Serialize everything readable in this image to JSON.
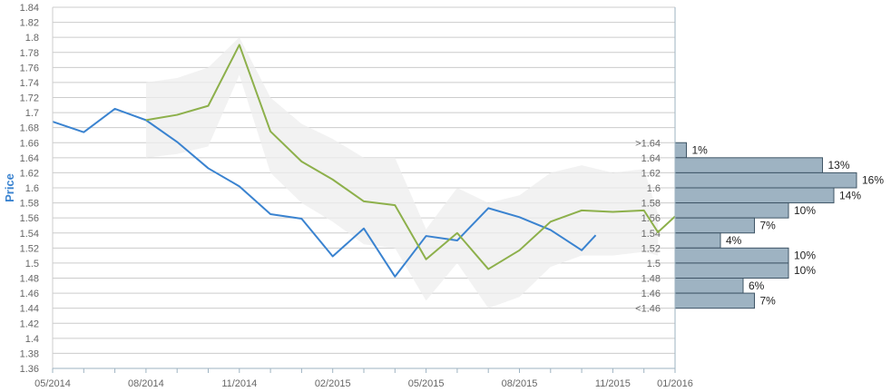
{
  "chart_data": {
    "type": "line",
    "ylabel": "Price",
    "xlabel": "",
    "ylim": [
      1.36,
      1.84
    ],
    "y_ticks": [
      "1.36",
      "1.38",
      "1.4",
      "1.42",
      "1.44",
      "1.46",
      "1.48",
      "1.5",
      "1.52",
      "1.54",
      "1.56",
      "1.58",
      "1.6",
      "1.62",
      "1.64",
      "1.66",
      "1.68",
      "1.7",
      "1.72",
      "1.74",
      "1.76",
      "1.78",
      "1.8",
      "1.82",
      "1.84"
    ],
    "x_ticks": [
      "05/2014",
      "08/2014",
      "11/2014",
      "02/2015",
      "05/2015",
      "08/2015",
      "11/2015",
      "01/2016"
    ],
    "grid": true,
    "series": [
      {
        "color": "#3a83d0",
        "x": [
          "05/2014",
          "06/2014",
          "07/2014",
          "08/2014",
          "09/2014",
          "10/2014",
          "11/2014",
          "12/2014",
          "01/2015",
          "02/2015",
          "03/2015",
          "04/2015",
          "05/2015",
          "06/2015",
          "07/2015",
          "08/2015",
          "09/2015",
          "10/2015",
          "10/2015+"
        ],
        "values": [
          1.688,
          1.674,
          1.705,
          1.69,
          1.661,
          1.626,
          1.602,
          1.565,
          1.559,
          1.509,
          1.546,
          1.482,
          1.536,
          1.53,
          1.573,
          1.561,
          1.544,
          1.517,
          1.537
        ]
      },
      {
        "color": "#8db04b",
        "x": [
          "08/2014",
          "09/2014",
          "10/2014",
          "11/2014",
          "12/2014",
          "01/2015",
          "02/2015",
          "03/2015",
          "04/2015",
          "05/2015",
          "06/2015",
          "07/2015",
          "08/2015",
          "09/2015",
          "10/2015",
          "11/2015",
          "12/2015",
          "12/2015+",
          "01/2016"
        ],
        "values": [
          1.69,
          1.697,
          1.709,
          1.79,
          1.675,
          1.635,
          1.611,
          1.582,
          1.577,
          1.505,
          1.54,
          1.492,
          1.517,
          1.555,
          1.57,
          1.568,
          1.57,
          1.541,
          1.562
        ]
      }
    ],
    "band": {
      "color": "#eeeeee",
      "x": [
        "08/2014",
        "09/2014",
        "10/2014",
        "11/2014",
        "12/2014",
        "01/2015",
        "02/2015",
        "03/2015",
        "04/2015",
        "05/2015",
        "06/2015",
        "07/2015",
        "08/2015",
        "09/2015",
        "10/2015",
        "11/2015",
        "12/2015",
        "12/2015+"
      ],
      "upper": [
        1.74,
        1.746,
        1.76,
        1.8,
        1.72,
        1.685,
        1.665,
        1.64,
        1.64,
        1.545,
        1.6,
        1.58,
        1.59,
        1.62,
        1.63,
        1.62,
        1.625,
        1.565
      ],
      "lower": [
        1.64,
        1.645,
        1.655,
        1.75,
        1.62,
        1.58,
        1.555,
        1.525,
        1.52,
        1.45,
        1.5,
        1.44,
        1.455,
        1.495,
        1.51,
        1.51,
        1.515,
        1.51
      ]
    },
    "histogram": {
      "color": "#9eb3c2",
      "bins": [
        {
          "label": ">1.64",
          "y": 1.65,
          "pct": "1%",
          "value": 1
        },
        {
          "label": "1.64",
          "y": 1.63,
          "pct": "13%",
          "value": 13
        },
        {
          "label": "1.62",
          "y": 1.61,
          "pct": "16%",
          "value": 16
        },
        {
          "label": "1.6",
          "y": 1.59,
          "pct": "14%",
          "value": 14
        },
        {
          "label": "1.58",
          "y": 1.57,
          "pct": "10%",
          "value": 10
        },
        {
          "label": "1.56",
          "y": 1.55,
          "pct": "7%",
          "value": 7
        },
        {
          "label": "1.54",
          "y": 1.53,
          "pct": "4%",
          "value": 4
        },
        {
          "label": "1.52",
          "y": 1.51,
          "pct": "10%",
          "value": 10
        },
        {
          "label": "1.5",
          "y": 1.49,
          "pct": "10%",
          "value": 10
        },
        {
          "label": "1.48",
          "y": 1.47,
          "pct": "6%",
          "value": 6
        },
        {
          "label": "1.46",
          "y": 1.45,
          "pct": "7%",
          "value": 7
        },
        {
          "label": "<1.46",
          "y": null,
          "pct": "",
          "value": 0
        }
      ]
    },
    "colors": {
      "axis_title": "#3a83d0",
      "grid": "#cccccc",
      "frame": "#9eb3c2"
    }
  }
}
